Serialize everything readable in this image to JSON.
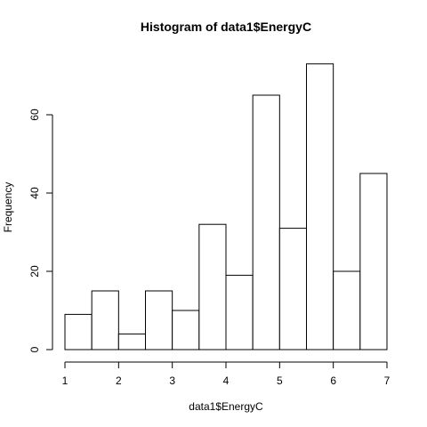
{
  "chart_data": {
    "type": "bar",
    "title": "Histogram of data1$EnergyC",
    "xlabel": "data1$EnergyC",
    "ylabel": "Frequency",
    "bins": [
      [
        1.0,
        1.5
      ],
      [
        1.5,
        2.0
      ],
      [
        2.0,
        2.5
      ],
      [
        2.5,
        3.0
      ],
      [
        3.0,
        3.5
      ],
      [
        3.5,
        4.0
      ],
      [
        4.0,
        4.5
      ],
      [
        4.5,
        5.0
      ],
      [
        5.0,
        5.5
      ],
      [
        5.5,
        6.0
      ],
      [
        6.0,
        6.5
      ],
      [
        6.5,
        7.0
      ]
    ],
    "values": [
      9,
      15,
      4,
      15,
      10,
      32,
      19,
      65,
      31,
      73,
      20,
      45
    ],
    "x_ticks": [
      "1",
      "2",
      "3",
      "4",
      "5",
      "6",
      "7"
    ],
    "y_ticks": [
      "0",
      "20",
      "40",
      "60"
    ],
    "xlim": [
      1,
      7
    ],
    "ylim": [
      0,
      73
    ],
    "grid": false,
    "colors": {
      "bar_fill": "#ffffff",
      "bar_stroke": "#000000",
      "text": "#000000"
    }
  }
}
